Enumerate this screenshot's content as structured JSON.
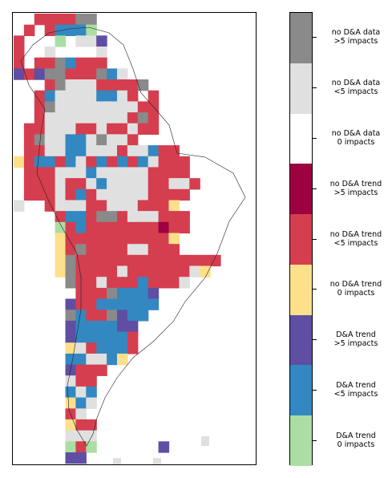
{
  "map": {
    "grid_rows": [
      "..####CC..........",
      ".#.#BBBG..........",
      "#...G.WWP.........",
      "#..W....W.........",
      "#.##CB###.........",
      "P#PCC###CBW.......",
      "...#CWWW####C.....",
      "..#BWWWWBBW#.#....",
      "..#CWWWWWWWW##....",
      "..#WWWWWWWW#C#....",
      ".##WWW##W##W##....",
      ".#CWWBBWCWW#......",
      ".##WWBBWWW#WWB##..",
      "Y#BB#BW#B#B#BW###.",
      ".###WWWBWWWWW####.",
      ".###W##WBWWWW##WW#",
      ".###W#B#WWWWW####.",
      "W..#WWW##WWW###Y..",
      "....#BB#CC#WWW###..",
      "....G#B#######A##..",
      "....Y##########Y...",
      "....Y#C####WW###...",
      "....YC##############",
      "....YC####W######WY..",
      ".....C##W###B###W...",
      "......###CBBBP......",
      ".....P##BBBBBB......",
      ".....CB##CPBB.......",
      ".....PBBBBPP........",
      ".....PBBBBB#........",
      ".....YW#BBB#........",
      ".....BBWWBY.........",
      ".....P###..........",
      ".....W##...........",
      ".....BWB...........",
      ".....YBW...........",
      ".....#W............",
      ".....Y##...........",
      ".....WWW...........",
      ".....G#G......P.....",
      ".....PP............"
    ],
    "palette": {
      ".": "#ffffff",
      "G": "#aadea3",
      "B": "#3388c1",
      "P": "#5f4ea3",
      "Y": "#fee08b",
      "#": "#d53e4f",
      "A": "#9e0142",
      "W": "#e0e0e0",
      "C": "#8a8a8a"
    }
  },
  "colorbar": {
    "levels": [
      {
        "label": "no D&A data\n>5 impacts",
        "color": "#8a8a8a"
      },
      {
        "label": "no D&A data\n<5 impacts",
        "color": "#e0e0e0"
      },
      {
        "label": "no D&A data\n0 impacts",
        "color": "#ffffff"
      },
      {
        "label": "no D&A trend\n>5 impacts",
        "color": "#9e0142"
      },
      {
        "label": "no D&A trend\n<5 impacts",
        "color": "#d53e4f"
      },
      {
        "label": "no D&A trend\n0 impacts",
        "color": "#fee08b"
      },
      {
        "label": "D&A trend\n>5 impacts",
        "color": "#5f4ea3"
      },
      {
        "label": "D&A trend\n<5 impacts",
        "color": "#3388c1"
      },
      {
        "label": "D&A trend\n0 impacts",
        "color": "#aadea3"
      }
    ]
  }
}
